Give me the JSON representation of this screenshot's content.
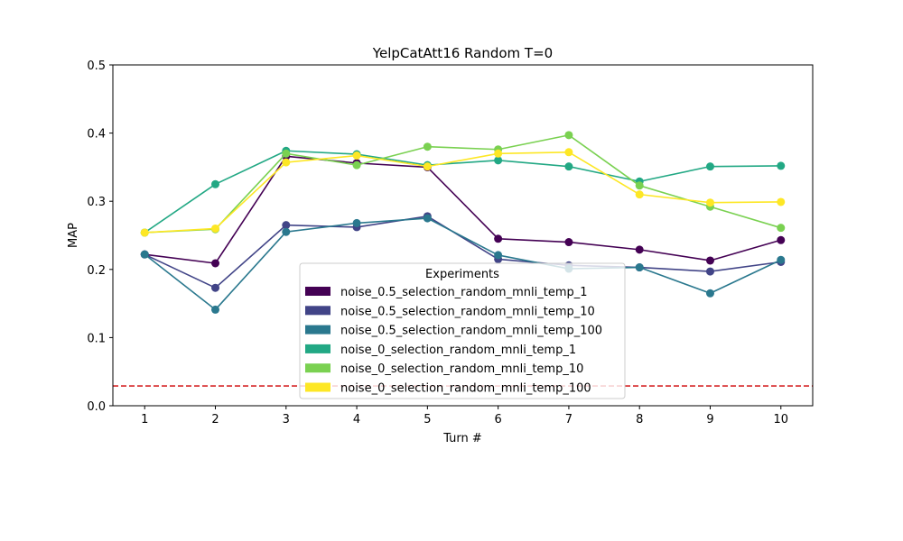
{
  "chart_data": {
    "type": "line",
    "title": "YelpCatAtt16 Random T=0",
    "xlabel": "Turn #",
    "ylabel": "MAP",
    "x": [
      1,
      2,
      3,
      4,
      5,
      6,
      7,
      8,
      9,
      10
    ],
    "xlim": [
      0.55,
      10.45
    ],
    "ylim": [
      0,
      0.5
    ],
    "yticks": [
      "0.0",
      "0.1",
      "0.2",
      "0.3",
      "0.4",
      "0.5"
    ],
    "xticks": [
      "1",
      "2",
      "3",
      "4",
      "5",
      "6",
      "7",
      "8",
      "9",
      "10"
    ],
    "grid": false,
    "legend": {
      "title": "Experiments",
      "placement": "lower-center"
    },
    "baseline": {
      "y": 0.029,
      "color": "#d62728",
      "style": "dashed"
    },
    "series": [
      {
        "name": "noise_0.5_selection_random_mnli_temp_1",
        "color": "#440154",
        "values": [
          0.222,
          0.209,
          0.366,
          0.356,
          0.35,
          0.245,
          0.24,
          0.229,
          0.213,
          0.243
        ]
      },
      {
        "name": "noise_0.5_selection_random_mnli_temp_10",
        "color": "#414487",
        "values": [
          0.222,
          0.173,
          0.265,
          0.262,
          0.278,
          0.215,
          0.206,
          0.203,
          0.197,
          0.211
        ]
      },
      {
        "name": "noise_0.5_selection_random_mnli_temp_100",
        "color": "#2a788e",
        "values": [
          0.222,
          0.141,
          0.255,
          0.268,
          0.275,
          0.221,
          0.201,
          0.203,
          0.165,
          0.214
        ]
      },
      {
        "name": "noise_0_selection_random_mnli_temp_1",
        "color": "#22a884",
        "values": [
          0.254,
          0.325,
          0.374,
          0.369,
          0.353,
          0.36,
          0.351,
          0.329,
          0.351,
          0.352
        ]
      },
      {
        "name": "noise_0_selection_random_mnli_temp_10",
        "color": "#7ad151",
        "values": [
          0.254,
          0.259,
          0.37,
          0.353,
          0.38,
          0.376,
          0.397,
          0.323,
          0.292,
          0.261
        ]
      },
      {
        "name": "noise_0_selection_random_mnli_temp_100",
        "color": "#fde725",
        "values": [
          0.254,
          0.26,
          0.357,
          0.367,
          0.351,
          0.37,
          0.372,
          0.31,
          0.298,
          0.299
        ]
      }
    ]
  }
}
